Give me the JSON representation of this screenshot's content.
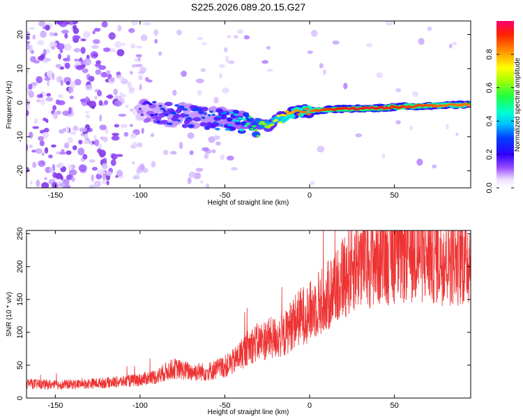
{
  "title": "S225.2026.089.20.15.G27",
  "chart_data": [
    {
      "type": "heatmap",
      "xlabel": "Height of straight line (km)",
      "ylabel": "Frequency (Hz)",
      "xlim": [
        -167,
        95
      ],
      "ylim": [
        -25,
        24
      ],
      "xticks": [
        -150,
        -100,
        -50,
        0,
        50
      ],
      "yticks": [
        20,
        10,
        0,
        -10,
        -20
      ],
      "colorbar": {
        "label": "Normalized spectral amplitude",
        "range": [
          0,
          1
        ],
        "ticks": [
          0.0,
          0.2,
          0.4,
          0.6,
          0.8
        ]
      },
      "ridge": {
        "x": [
          -100,
          -90,
          -80,
          -70,
          -60,
          -50,
          -40,
          -30,
          -25,
          -20,
          -15,
          -10,
          -5,
          0,
          5,
          10,
          20,
          30,
          40,
          50,
          60,
          70,
          80,
          90
        ],
        "frequency": [
          -2,
          -3,
          -3.5,
          -4,
          -4.5,
          -5,
          -6,
          -7,
          -6.5,
          -5.5,
          -4,
          -3,
          -2.5,
          -2.5,
          -2.3,
          -2,
          -1.8,
          -1.7,
          -1.6,
          -1.3,
          -1,
          -0.9,
          -0.8,
          -0.6
        ],
        "amplitude": [
          0.15,
          0.25,
          0.3,
          0.3,
          0.3,
          0.35,
          0.45,
          0.6,
          0.65,
          0.7,
          0.75,
          0.8,
          0.85,
          0.85,
          0.88,
          0.9,
          0.93,
          0.95,
          0.95,
          0.92,
          0.9,
          0.88,
          0.85,
          0.85
        ]
      }
    },
    {
      "type": "line",
      "xlabel": "Height of straight line (km)",
      "ylabel": "SNR (10 * v/v)",
      "xlim": [
        -167,
        95
      ],
      "ylim": [
        0,
        255
      ],
      "xticks": [
        -150,
        -100,
        -50,
        0,
        50
      ],
      "yticks": [
        0,
        50,
        100,
        150,
        200,
        250
      ],
      "series": [
        {
          "name": "SNR",
          "color": "#ee3333",
          "x": [
            -167,
            -150,
            -130,
            -110,
            -100,
            -90,
            -85,
            -80,
            -70,
            -60,
            -50,
            -45,
            -40,
            -35,
            -30,
            -25,
            -20,
            -15,
            -10,
            -5,
            0,
            5,
            10,
            15,
            20,
            25,
            30,
            40,
            50,
            60,
            70,
            80,
            95
          ],
          "y": [
            22,
            20,
            22,
            25,
            28,
            33,
            40,
            45,
            40,
            40,
            48,
            55,
            68,
            80,
            85,
            90,
            92,
            95,
            115,
            125,
            130,
            145,
            150,
            172,
            185,
            200,
            210,
            215,
            220,
            222,
            220,
            218,
            215
          ]
        }
      ]
    }
  ]
}
